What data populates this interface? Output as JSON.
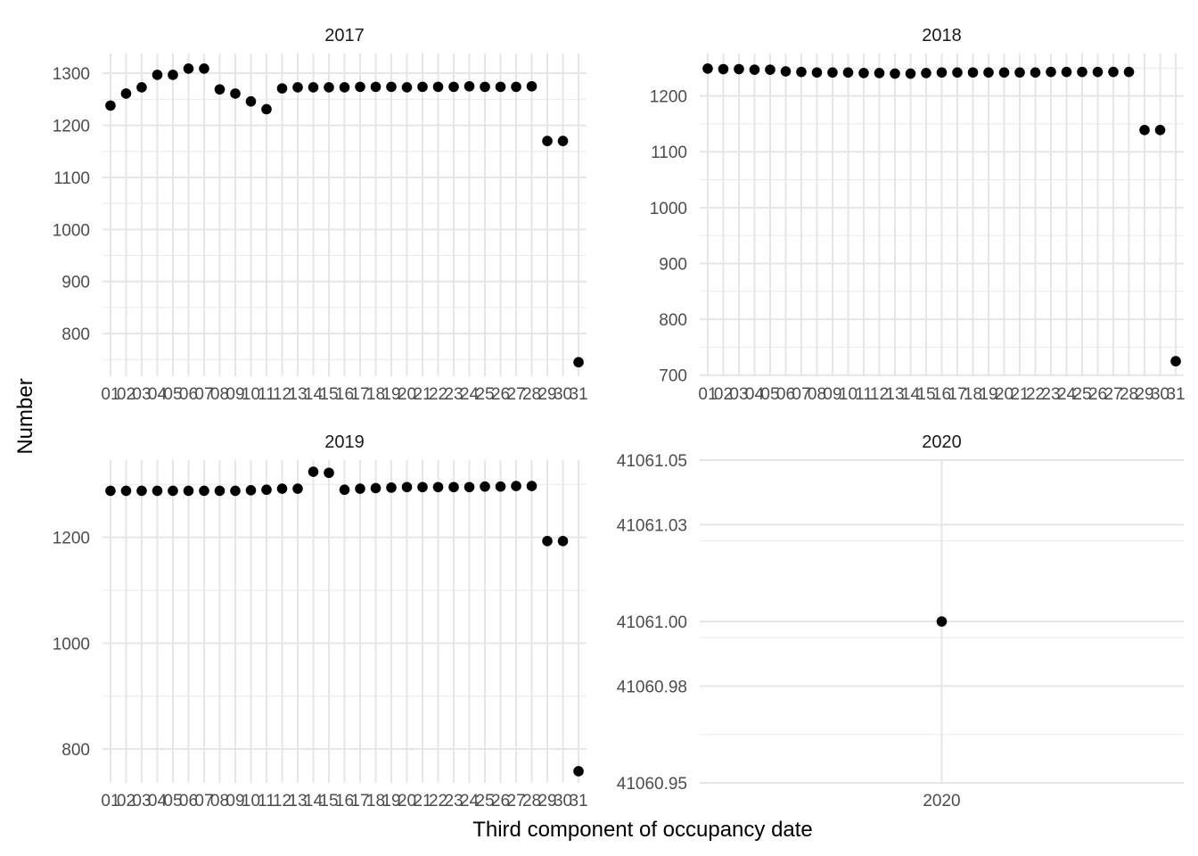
{
  "figure": {
    "xlabel": "Third component of occupancy date",
    "ylabel": "Number"
  },
  "chart_data": [
    {
      "type": "scatter",
      "title": "2017",
      "categories": [
        "01",
        "02",
        "03",
        "04",
        "05",
        "06",
        "07",
        "08",
        "09",
        "10",
        "11",
        "12",
        "13",
        "14",
        "15",
        "16",
        "17",
        "18",
        "19",
        "20",
        "21",
        "22",
        "23",
        "24",
        "25",
        "26",
        "27",
        "28",
        "29",
        "30",
        "31"
      ],
      "values": [
        1238,
        1261,
        1273,
        1297,
        1297,
        1309,
        1309,
        1269,
        1261,
        1246,
        1231,
        1271,
        1273,
        1273,
        1273,
        1273,
        1274,
        1274,
        1274,
        1273,
        1274,
        1274,
        1274,
        1275,
        1274,
        1274,
        1274,
        1275,
        1170,
        1170,
        745
      ],
      "yticks": [
        800,
        900,
        1000,
        1100,
        1200,
        1300
      ],
      "ylim": [
        718,
        1338
      ],
      "grid": true
    },
    {
      "type": "scatter",
      "title": "2018",
      "categories": [
        "01",
        "02",
        "03",
        "04",
        "05",
        "06",
        "07",
        "08",
        "09",
        "10",
        "11",
        "12",
        "13",
        "14",
        "15",
        "16",
        "17",
        "18",
        "19",
        "20",
        "21",
        "22",
        "23",
        "24",
        "25",
        "26",
        "27",
        "28",
        "29",
        "30",
        "31"
      ],
      "values": [
        1249,
        1248,
        1248,
        1247,
        1247,
        1244,
        1243,
        1242,
        1242,
        1242,
        1241,
        1241,
        1240,
        1240,
        1241,
        1242,
        1242,
        1242,
        1242,
        1242,
        1242,
        1242,
        1243,
        1243,
        1243,
        1243,
        1243,
        1243,
        1139,
        1139,
        725
      ],
      "yticks": [
        700,
        800,
        900,
        1000,
        1100,
        1200
      ],
      "ylim": [
        698,
        1276
      ],
      "grid": true
    },
    {
      "type": "scatter",
      "title": "2019",
      "categories": [
        "01",
        "02",
        "03",
        "04",
        "05",
        "06",
        "07",
        "08",
        "09",
        "10",
        "11",
        "12",
        "13",
        "14",
        "15",
        "16",
        "17",
        "18",
        "19",
        "20",
        "21",
        "22",
        "23",
        "24",
        "25",
        "26",
        "27",
        "28",
        "29",
        "30",
        "31"
      ],
      "values": [
        1288,
        1288,
        1288,
        1288,
        1288,
        1288,
        1288,
        1288,
        1288,
        1289,
        1290,
        1292,
        1292,
        1324,
        1322,
        1290,
        1292,
        1293,
        1294,
        1295,
        1295,
        1295,
        1295,
        1295,
        1296,
        1296,
        1297,
        1297,
        1193,
        1193,
        758
      ],
      "yticks": [
        800,
        1000,
        1200
      ],
      "ylim": [
        736,
        1346
      ],
      "grid": true
    },
    {
      "type": "scatter",
      "title": "2020",
      "categories": [
        "2020"
      ],
      "values": [
        41061.0
      ],
      "yticks": [
        "41060.95",
        "41060.98",
        "41061.00",
        "41061.03",
        "41061.05"
      ],
      "ylim": [
        41060.95,
        41061.05
      ],
      "grid": true
    }
  ]
}
